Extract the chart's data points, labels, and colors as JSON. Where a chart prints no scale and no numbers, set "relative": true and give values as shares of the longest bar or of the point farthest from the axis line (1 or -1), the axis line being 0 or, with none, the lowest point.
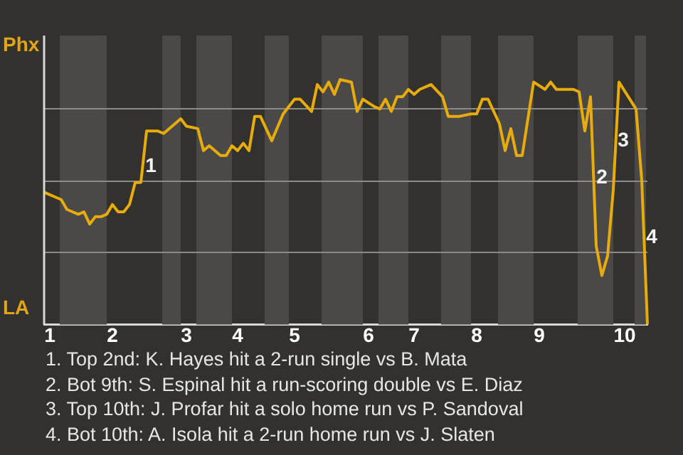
{
  "chart_data": {
    "type": "line",
    "relative": true,
    "categories": [
      null,
      "1",
      null,
      null,
      null,
      null,
      null,
      null,
      null,
      null,
      null,
      null,
      "2",
      null,
      null,
      null,
      null,
      null,
      null,
      null,
      null,
      null,
      null,
      null,
      null,
      "3",
      null,
      null,
      null,
      null,
      null,
      null,
      null,
      null,
      "4",
      null,
      null,
      null,
      null,
      null,
      null,
      null,
      null,
      null,
      "5",
      null,
      null,
      null,
      null,
      null,
      null,
      null,
      null,
      null,
      null,
      null,
      null,
      "6",
      null,
      null,
      null,
      null,
      null,
      null,
      null,
      "7",
      null,
      null,
      null,
      null,
      null,
      null,
      null,
      null,
      null,
      null,
      "8",
      null,
      null,
      null,
      null,
      null,
      null,
      null,
      null,
      null,
      null,
      "9",
      null,
      null,
      null,
      null,
      null,
      null,
      null,
      null,
      null,
      null,
      null,
      null,
      null,
      null,
      "10",
      null,
      null,
      null,
      null
    ],
    "series": [
      {
        "color": "#e8ac0a",
        "values": [
          0.54,
          0.53,
          null,
          0.51,
          0.47,
          0.46,
          0.45,
          0.46,
          0.41,
          0.44,
          0.44,
          0.45,
          0.49,
          0.46,
          0.46,
          0.49,
          0.58,
          0.58,
          0.79,
          null,
          0.79,
          0.78,
          null,
          0.82,
          0.84,
          0.81,
          null,
          0.8,
          0.71,
          0.73,
          null,
          0.69,
          0.69,
          0.73,
          0.71,
          0.74,
          0.71,
          0.85,
          0.85,
          null,
          0.75,
          null,
          0.86,
          null,
          0.92,
          0.92,
          null,
          0.87,
          0.98,
          0.95,
          0.99,
          0.94,
          1,
          null,
          0.99,
          0.87,
          0.92,
          null,
          0.89,
          0.88,
          0.92,
          0.87,
          0.93,
          0.93,
          0.96,
          0.94,
          0.96,
          null,
          0.98,
          null,
          0.93,
          0.85,
          null,
          0.85,
          null,
          0.86,
          0.86,
          0.92,
          0.92,
          null,
          0.82,
          0.71,
          0.8,
          0.69,
          0.69,
          null,
          0.99,
          null,
          0.96,
          0.99,
          0.96,
          null,
          null,
          0.96,
          0.95,
          0.79,
          0.93,
          0.32,
          0.2,
          0.28,
          0.55,
          0.99,
          null,
          null,
          0.88,
          0.59,
          0
        ]
      }
    ],
    "grid": "y",
    "legend": false,
    "marker": "none",
    "line_style": "solid",
    "annotations": [
      "Phx",
      "LA",
      "1",
      "2",
      "3",
      "4",
      "1. Top 2nd: K. Hayes hit a 2-run single vs B. Mata",
      "2. Bot 9th: S. Espinal hit a run-scoring double vs E. Diaz",
      "3. Top 10th: J. Profar hit a solo home run vs P. Sandoval",
      "4. Bot 10th: A. Isola hit a 2-run home run vs J. Slaten"
    ]
  }
}
